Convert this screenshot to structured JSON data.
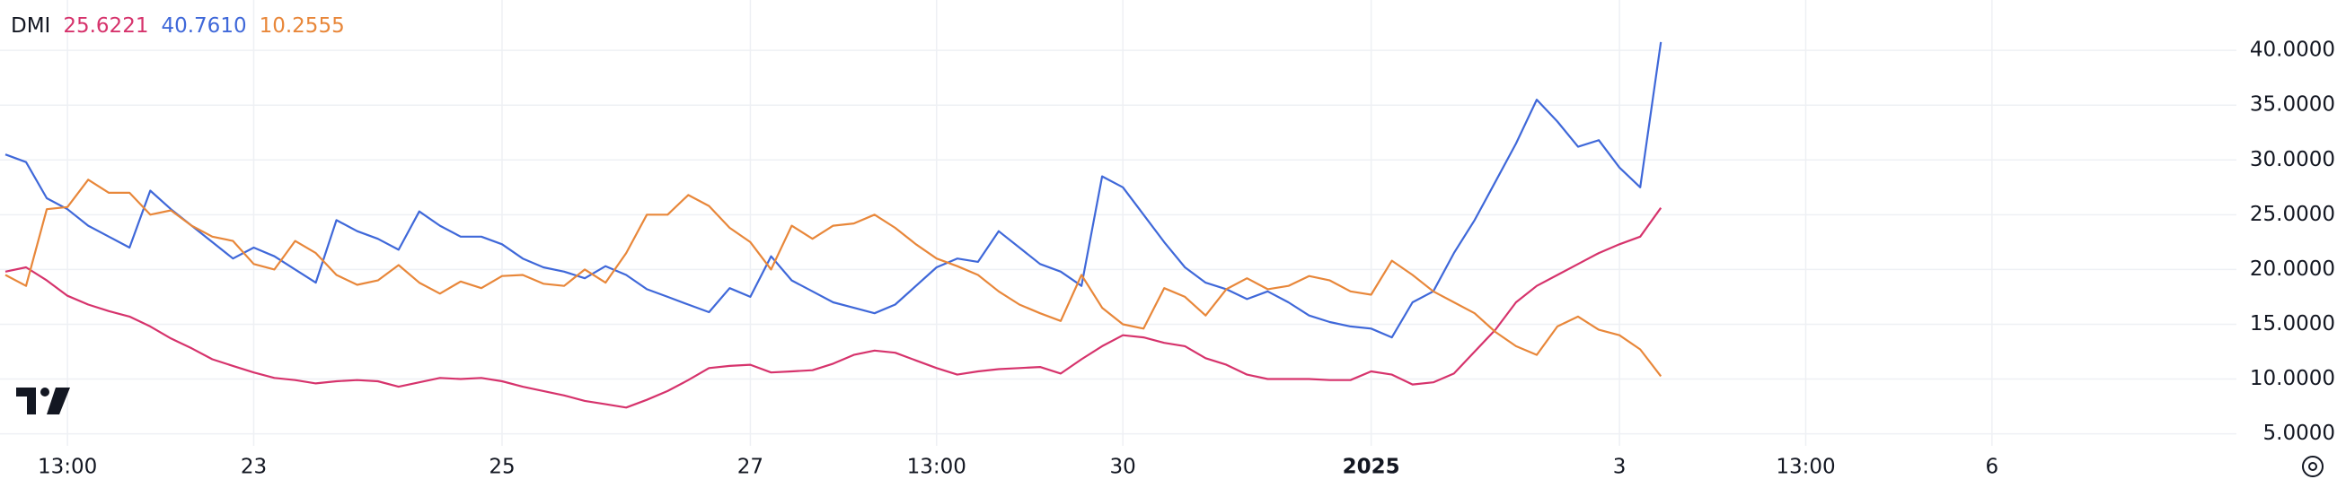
{
  "chart_data": {
    "type": "line",
    "legend": {
      "title": "DMI",
      "values": [
        "25.6221",
        "40.7610",
        "10.2555"
      ]
    },
    "categories": [
      null,
      null,
      null,
      "13:00",
      null,
      null,
      null,
      null,
      null,
      null,
      null,
      null,
      "23",
      null,
      null,
      null,
      null,
      null,
      null,
      null,
      null,
      null,
      null,
      null,
      "25",
      null,
      null,
      null,
      null,
      null,
      null,
      null,
      null,
      null,
      null,
      null,
      "27",
      null,
      null,
      null,
      null,
      null,
      null,
      null,
      null,
      "13:00",
      null,
      null,
      null,
      null,
      null,
      null,
      null,
      null,
      "30",
      null,
      null,
      null,
      null,
      null,
      null,
      null,
      null,
      null,
      null,
      null,
      "2025",
      null,
      null,
      null,
      null,
      null,
      null,
      null,
      null,
      null,
      null,
      null,
      "3",
      null,
      null,
      null,
      null,
      null,
      null,
      null,
      null,
      "13:00",
      null,
      null,
      null,
      null,
      null,
      null,
      null,
      null,
      "6"
    ],
    "bold_categories": [
      "2025"
    ],
    "series": [
      {
        "color": "#d6336c",
        "values": [
          19.8,
          20.2,
          19,
          17.6,
          16.8,
          16.2,
          15.7,
          14.8,
          13.7,
          12.8,
          11.8,
          11.2,
          10.6,
          10.1,
          9.9,
          9.6,
          9.8,
          9.9,
          9.8,
          9.3,
          9.7,
          10.1,
          10.0,
          10.1,
          9.8,
          9.3,
          8.9,
          8.5,
          8.0,
          7.7,
          7.4,
          8.1,
          8.9,
          9.9,
          11,
          11.2,
          11.3,
          10.6,
          10.7,
          10.8,
          11.4,
          12.2,
          12.6,
          12.4,
          11.7,
          11,
          10.4,
          10.7,
          10.9,
          11,
          11.1,
          10.5,
          11.8,
          13,
          14,
          13.8,
          13.3,
          13,
          11.9,
          11.3,
          10.4,
          10,
          10,
          10,
          9.9,
          9.9,
          10.7,
          10.4,
          9.5,
          9.7,
          10.5,
          12.5,
          14.5,
          17,
          18.5,
          19.5,
          20.5,
          21.5,
          22.3,
          23,
          25.6221,
          null,
          null,
          null,
          null,
          null,
          null,
          null,
          null,
          null,
          null,
          null,
          null,
          null,
          null,
          null,
          null
        ]
      },
      {
        "color": "#3f68d9",
        "values": [
          30.5,
          29.8,
          26.5,
          25.5,
          24,
          23,
          22,
          27.2,
          25.5,
          24,
          22.5,
          21,
          22,
          21.2,
          20,
          18.8,
          24.5,
          23.5,
          22.8,
          21.8,
          25.3,
          24,
          23,
          23,
          22.3,
          21,
          20.2,
          19.8,
          19.2,
          20.3,
          19.5,
          18.2,
          17.5,
          16.8,
          16.1,
          18.3,
          17.5,
          21.2,
          19,
          18,
          17,
          16.5,
          16,
          16.8,
          18.5,
          20.2,
          21,
          20.7,
          23.5,
          22,
          20.5,
          19.8,
          18.5,
          28.5,
          27.5,
          25,
          22.5,
          20.2,
          18.8,
          18.2,
          17.3,
          18,
          17,
          15.8,
          15.2,
          14.8,
          14.6,
          13.8,
          17,
          18,
          21.5,
          24.5,
          28,
          31.5,
          35.5,
          33.5,
          31.2,
          31.8,
          29.3,
          27.5,
          40.761,
          null,
          null,
          null,
          null,
          null,
          null,
          null,
          null,
          null,
          null,
          null,
          null,
          null,
          null,
          null,
          null
        ]
      },
      {
        "color": "#e8873a",
        "values": [
          19.5,
          18.5,
          25.5,
          25.7,
          28.2,
          27,
          27,
          25,
          25.4,
          24,
          23,
          22.6,
          20.5,
          20,
          22.6,
          21.5,
          19.5,
          18.6,
          19,
          20.4,
          18.8,
          17.8,
          18.9,
          18.3,
          19.4,
          19.5,
          18.7,
          18.5,
          20,
          18.8,
          21.5,
          25,
          25,
          26.8,
          25.8,
          23.8,
          22.5,
          20,
          24,
          22.8,
          24,
          24.2,
          25,
          23.8,
          22.3,
          21,
          20.3,
          19.5,
          18,
          16.8,
          16,
          15.3,
          19.5,
          16.5,
          15,
          14.6,
          18.3,
          17.5,
          15.8,
          18.2,
          19.2,
          18.2,
          18.5,
          19.4,
          19,
          18,
          17.7,
          20.8,
          19.5,
          18,
          17,
          16,
          14.3,
          13,
          12.2,
          14.8,
          15.7,
          14.5,
          14,
          12.7,
          10.2555,
          null,
          null,
          null,
          null,
          null,
          null,
          null,
          null,
          null,
          null,
          null,
          null,
          null,
          null,
          null,
          null
        ]
      }
    ],
    "ylim": [
      3.9,
      44.6
    ],
    "yticks": [
      {
        "value": 5,
        "label": "5.0000"
      },
      {
        "value": 10,
        "label": "10.0000"
      },
      {
        "value": 15,
        "label": "15.0000"
      },
      {
        "value": 20,
        "label": "20.0000"
      },
      {
        "value": 25,
        "label": "25.0000"
      },
      {
        "value": 30,
        "label": "30.0000"
      },
      {
        "value": 35,
        "label": "35.0000"
      },
      {
        "value": 40,
        "label": "40.0000"
      }
    ],
    "grid": true
  }
}
